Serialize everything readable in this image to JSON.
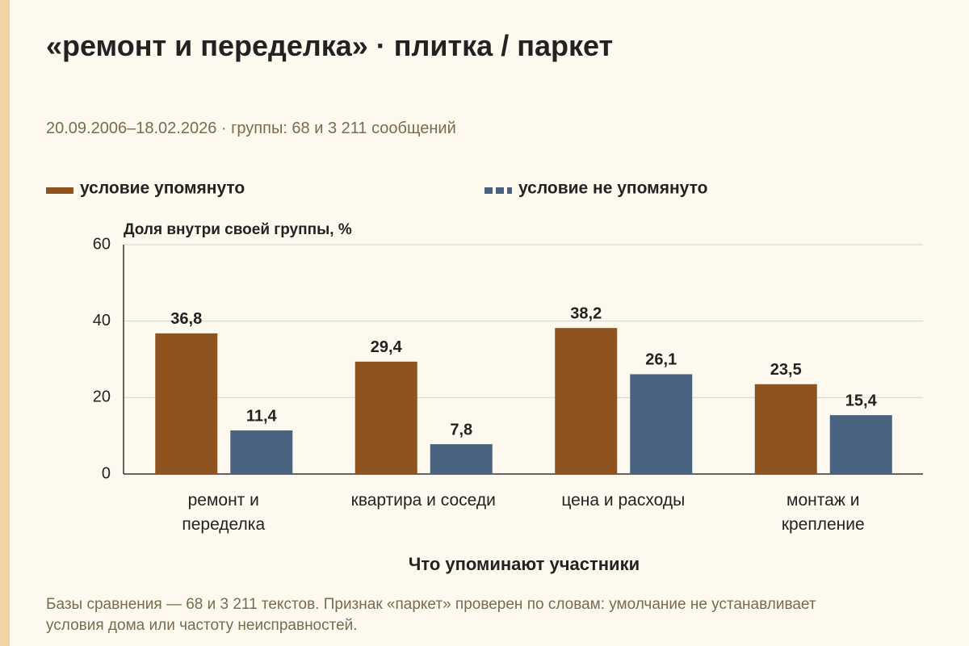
{
  "chart_data": {
    "type": "bar",
    "title": "«ремонт и переделка» · плитка / паркет",
    "subtitle": "20.09.2006–18.02.2026 · группы: 68 и 3 211 сообщений",
    "y_label": "Доля внутри своей группы, %",
    "x_label": "Что упоминают участники",
    "note": "Базы сравнения — 68 и 3 211 текстов. Признак «паркет» проверен по словам: умолчание не устанавливает условия дома или частоту неисправностей.",
    "categories": [
      "ремонт и\nпеределка",
      "квартира и соседи",
      "цена и расходы",
      "монтаж и\nкрепление"
    ],
    "series": [
      {
        "name": "условие упомянуто",
        "color": "#8e531e",
        "values": [
          36.8,
          29.4,
          38.2,
          23.5
        ],
        "value_labels": [
          "36,8",
          "29,4",
          "38,2",
          "23,5"
        ]
      },
      {
        "name": "условие не упомянуто",
        "color": "#4a6381",
        "values": [
          11.4,
          7.8,
          26.1,
          15.4
        ],
        "value_labels": [
          "11,4",
          "7,8",
          "26,1",
          "15,4"
        ]
      }
    ],
    "ylim": [
      0,
      60
    ],
    "yticks": [
      0,
      20,
      40,
      60
    ],
    "grid": true
  }
}
